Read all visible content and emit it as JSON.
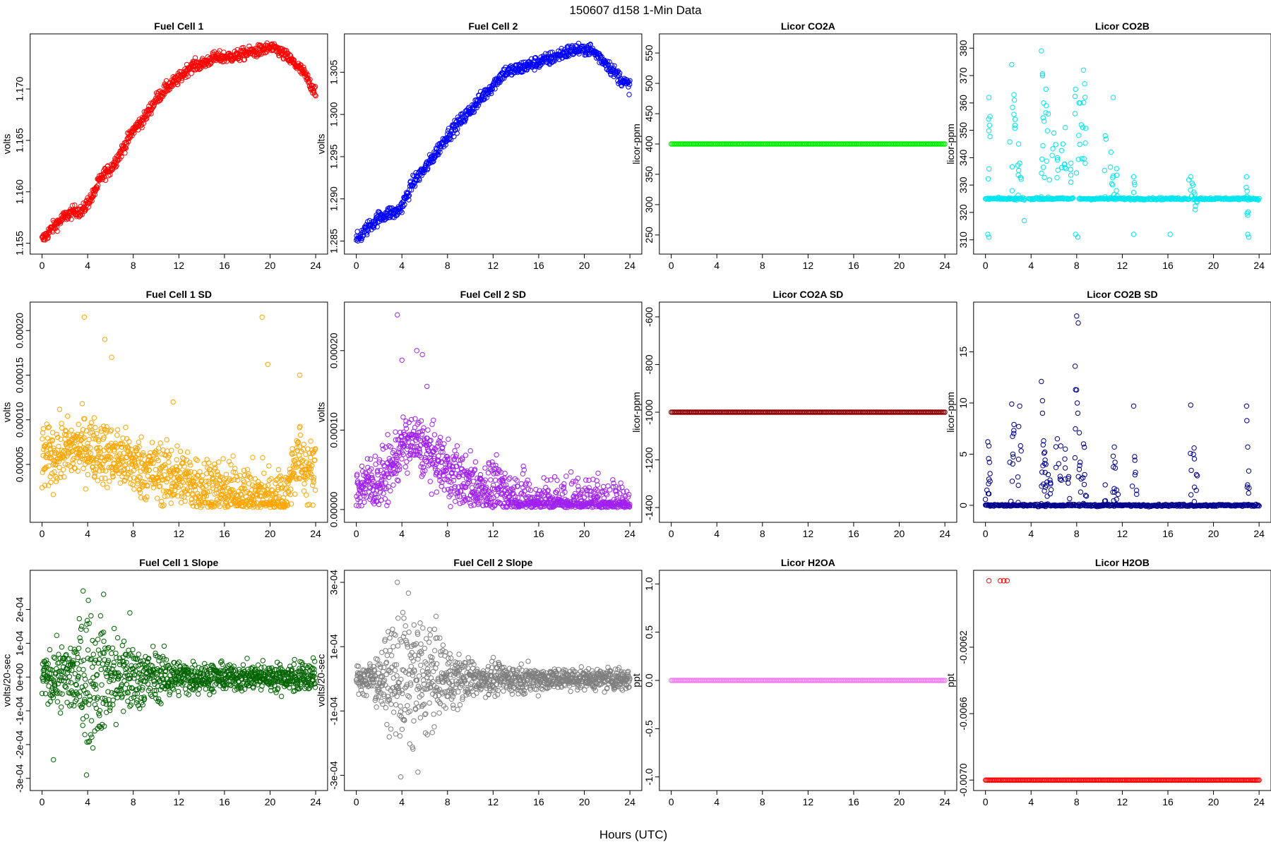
{
  "figure": {
    "title": "150607    d158    1-Min Data",
    "xlabel": "Hours (UTC)"
  },
  "chart_data": [
    {
      "type": "scatter",
      "title": "Fuel Cell 1",
      "ylabel": "volts",
      "color": "#ff0000",
      "xlim": [
        0,
        24
      ],
      "ylim": [
        1.1548,
        1.1745
      ],
      "x_ticks": [
        "0",
        "4",
        "8",
        "12",
        "16",
        "20",
        "24"
      ],
      "y_ticks": [
        "1.155",
        "1.160",
        "1.165",
        "1.170"
      ],
      "pattern": "curve",
      "x": [
        0,
        1,
        2,
        3,
        3.5,
        4,
        4.5,
        5,
        5.5,
        6,
        7,
        8,
        9,
        10,
        11,
        12,
        13,
        14,
        15,
        16,
        17,
        18,
        19,
        20,
        20.5,
        21,
        21.5,
        22,
        22.5,
        23,
        23.5,
        24
      ],
      "y": [
        1.1553,
        1.1566,
        1.1576,
        1.1582,
        1.158,
        1.159,
        1.1597,
        1.161,
        1.1618,
        1.1622,
        1.164,
        1.166,
        1.1672,
        1.169,
        1.1702,
        1.171,
        1.1722,
        1.1724,
        1.173,
        1.1731,
        1.1732,
        1.1735,
        1.1737,
        1.174,
        1.1739,
        1.1735,
        1.1731,
        1.1726,
        1.1721,
        1.1715,
        1.1705,
        1.1698
      ],
      "spread": 0.0003
    },
    {
      "type": "scatter",
      "title": "Fuel Cell 2",
      "ylabel": "volts",
      "color": "#0000ff",
      "xlim": [
        0,
        24
      ],
      "ylim": [
        1.2845,
        1.3085
      ],
      "x_ticks": [
        "0",
        "4",
        "8",
        "12",
        "16",
        "20",
        "24"
      ],
      "y_ticks": [
        "1.285",
        "1.290",
        "1.295",
        "1.300",
        "1.305"
      ],
      "pattern": "curve",
      "x": [
        0,
        1,
        2,
        3,
        3.5,
        4,
        4.5,
        5,
        5.5,
        6,
        7,
        8,
        9,
        10,
        11,
        12,
        13,
        14,
        15,
        16,
        17,
        18,
        19,
        20,
        20.5,
        21,
        21.5,
        22,
        22.5,
        23,
        23.5,
        24
      ],
      "y": [
        1.285,
        1.2866,
        1.2878,
        1.2884,
        1.2883,
        1.2892,
        1.2905,
        1.292,
        1.2928,
        1.2935,
        1.2955,
        1.2975,
        1.299,
        1.3005,
        1.302,
        1.3035,
        1.305,
        1.3053,
        1.3058,
        1.3062,
        1.3066,
        1.3072,
        1.3076,
        1.3078,
        1.3077,
        1.3072,
        1.3066,
        1.306,
        1.3052,
        1.3045,
        1.3038,
        1.3033
      ],
      "spread": 0.0004
    },
    {
      "type": "scatter",
      "title": "Licor CO2A",
      "ylabel": "licor-ppm",
      "color": "#00ee00",
      "xlim": [
        0,
        24
      ],
      "ylim": [
        233,
        567
      ],
      "x_ticks": [
        "0",
        "4",
        "8",
        "12",
        "16",
        "20",
        "24"
      ],
      "y_ticks": [
        "250",
        "300",
        "350",
        "400",
        "450",
        "500",
        "550"
      ],
      "pattern": "constant",
      "value": 400
    },
    {
      "type": "scatter",
      "title": "Licor CO2B",
      "ylabel": "licor-ppm",
      "color": "#00e5ee",
      "xlim": [
        0,
        24
      ],
      "ylim": [
        308,
        382
      ],
      "x_ticks": [
        "0",
        "4",
        "8",
        "12",
        "16",
        "20",
        "24"
      ],
      "y_ticks": [
        "310",
        "320",
        "330",
        "340",
        "350",
        "360",
        "370",
        "380"
      ],
      "pattern": "baseline_spikes",
      "value": 325,
      "spikes_x": [
        0.3,
        0.4,
        2.3,
        2.5,
        2.6,
        2.9,
        3.0,
        4.9,
        5.0,
        5.1,
        5.3,
        5.5,
        6.0,
        6.3,
        6.8,
        7.0,
        7.5,
        7.9,
        8.2,
        8.4,
        8.6,
        8.7,
        10.5,
        11.0,
        11.2,
        11.5,
        13.0,
        18.0,
        18.2,
        18.4,
        22.9,
        23.0
      ],
      "spikes_y": [
        362,
        355,
        374,
        363,
        354,
        345,
        338,
        379,
        370,
        360,
        365,
        356,
        349,
        340,
        345,
        351,
        338,
        365,
        360,
        352,
        372,
        367,
        348,
        342,
        362,
        336,
        333,
        333,
        330,
        321,
        333,
        319
      ],
      "lows_x": [
        0.2,
        0.3,
        3.4,
        7.9,
        8.1,
        13.0,
        16.2,
        23.0,
        23.1
      ],
      "lows_y": [
        312,
        311,
        317,
        312,
        311,
        312,
        312,
        312,
        311
      ],
      "gaps": [
        [
          3.5,
          3.8
        ],
        [
          7.7,
          8.2
        ],
        [
          17.9,
          18.2
        ]
      ]
    },
    {
      "type": "scatter",
      "title": "Fuel Cell 1 SD",
      "ylabel": "volts",
      "color": "#ffa500",
      "xlim": [
        0,
        24
      ],
      "ylim": [
        -5e-06,
        0.000222
      ],
      "x_ticks": [
        "0",
        "4",
        "8",
        "12",
        "16",
        "20",
        "24"
      ],
      "y_ticks": [
        "0.00005",
        "0.00010",
        "0.00015",
        "0.00020"
      ],
      "pattern": "noisy",
      "x": [
        0,
        2,
        4,
        6,
        8,
        10,
        12,
        14,
        16,
        18,
        20,
        21.5,
        22,
        22.5,
        23,
        24
      ],
      "y": [
        5.5e-05,
        6.5e-05,
        7e-05,
        6e-05,
        5e-05,
        4e-05,
        3.5e-05,
        2.5e-05,
        1.8e-05,
        1.5e-05,
        1.3e-05,
        1.2e-05,
        5e-05,
        6e-05,
        4.5e-05,
        4e-05
      ],
      "spread": 1.8e-05,
      "outliers_x": [
        3.7,
        5.5,
        6.1,
        19.3,
        19.8,
        11.5,
        22.6
      ],
      "outliers_y": [
        0.000215,
        0.00019,
        0.00017,
        0.000215,
        0.000162,
        0.00012,
        0.00015
      ]
    },
    {
      "type": "scatter",
      "title": "Fuel Cell 2 SD",
      "ylabel": "volts",
      "color": "#a020f0",
      "xlim": [
        0,
        24
      ],
      "ylim": [
        -5e-06,
        0.00025
      ],
      "x_ticks": [
        "0",
        "4",
        "8",
        "12",
        "16",
        "20",
        "24"
      ],
      "y_ticks": [
        "0.00000",
        "0.00010",
        "0.00020"
      ],
      "pattern": "noisy",
      "x": [
        0,
        2,
        3,
        4,
        5,
        6,
        8,
        10,
        12,
        13,
        14,
        16,
        18,
        20,
        22,
        24
      ],
      "y": [
        3e-05,
        3.5e-05,
        5e-05,
        8e-05,
        8.5e-05,
        7.5e-05,
        5e-05,
        3e-05,
        2.5e-05,
        2.2e-05,
        1.2e-05,
        8e-06,
        6e-06,
        5e-06,
        6e-06,
        8e-06
      ],
      "spread": 1.8e-05,
      "outliers_x": [
        3.6,
        4.0,
        5.3,
        5.8,
        6.2
      ],
      "outliers_y": [
        0.000245,
        0.000188,
        0.0002,
        0.000195,
        0.000155
      ]
    },
    {
      "type": "scatter",
      "title": "Licor CO2A SD",
      "ylabel": "licor-ppm",
      "color": "#8b0000",
      "xlim": [
        0,
        24
      ],
      "ylim": [
        -1425,
        -575
      ],
      "x_ticks": [
        "0",
        "4",
        "8",
        "12",
        "16",
        "20",
        "24"
      ],
      "y_ticks": [
        "-1400",
        "-1200",
        "-1000",
        "-800",
        "-600"
      ],
      "pattern": "constant",
      "value": -1000
    },
    {
      "type": "scatter",
      "title": "Licor CO2B SD",
      "ylabel": "licor-ppm",
      "color": "#00008b",
      "xlim": [
        0,
        24
      ],
      "ylim": [
        -0.8,
        19.0
      ],
      "x_ticks": [
        "0",
        "4",
        "8",
        "12",
        "16",
        "20",
        "24"
      ],
      "y_ticks": [
        "0",
        "5",
        "10",
        "15"
      ],
      "pattern": "baseline_spikes",
      "value": 0,
      "spikes_x": [
        0.2,
        0.3,
        0.4,
        2.3,
        2.4,
        2.5,
        2.9,
        3.0,
        4.9,
        5.0,
        5.1,
        5.2,
        5.3,
        5.5,
        5.7,
        6.3,
        6.6,
        7.0,
        7.3,
        7.9,
        8.0,
        8.1,
        8.3,
        8.6,
        8.7,
        10.5,
        11.2,
        11.3,
        11.5,
        13.0,
        13.1,
        18.0,
        18.3,
        18.5,
        22.9,
        23.0
      ],
      "spikes_y": [
        6.2,
        5.8,
        3.1,
        9.9,
        5.0,
        7.9,
        4.5,
        9.7,
        12.1,
        9.0,
        6.3,
        5.2,
        4.0,
        3.0,
        2.2,
        6.5,
        5.8,
        5.5,
        2.8,
        11.3,
        18.5,
        9.0,
        4.2,
        6.0,
        3.0,
        2.0,
        4.8,
        5.7,
        1.5,
        9.7,
        4.4,
        9.8,
        5.6,
        3.0,
        9.7,
        5.7
      ],
      "gaps": []
    },
    {
      "type": "scatter",
      "title": "Fuel Cell 1 Slope",
      "ylabel": "volts/20-sec",
      "color": "#006400",
      "xlim": [
        0,
        24
      ],
      "ylim": [
        -0.00031,
        0.00029
      ],
      "x_ticks": [
        "0",
        "4",
        "8",
        "12",
        "16",
        "20",
        "24"
      ],
      "y_ticks": [
        "-3e-04",
        "-2e-04",
        "-1e-04",
        "0e+00",
        "1e-04",
        "2e-04"
      ],
      "pattern": "noisy",
      "x": [
        0,
        2,
        4,
        6,
        8,
        10,
        12,
        16,
        20,
        24
      ],
      "y": [
        0,
        0,
        0,
        0,
        0,
        0,
        0,
        0,
        0,
        0
      ],
      "spread_profile": [
        3e-05,
        5e-05,
        0.0001,
        8e-05,
        5e-05,
        4e-05,
        2.5e-05,
        2e-05,
        2e-05,
        2.5e-05
      ],
      "outliers_x": [
        3.6,
        5.4,
        3.9,
        7.7,
        1.0
      ],
      "outliers_y": [
        0.000255,
        0.000245,
        -0.00029,
        0.00019,
        -0.000245
      ]
    },
    {
      "type": "scatter",
      "title": "Fuel Cell 2 Slope",
      "ylabel": "volts/20-sec",
      "color": "#7f7f7f",
      "xlim": [
        0,
        24
      ],
      "ylim": [
        -0.00032,
        0.00031
      ],
      "x_ticks": [
        "0",
        "4",
        "8",
        "12",
        "16",
        "20",
        "24"
      ],
      "y_ticks": [
        "-3e-04",
        "-1e-04",
        "1e-04",
        "3e-04"
      ],
      "pattern": "noisy",
      "x": [
        0,
        2,
        4,
        6,
        8,
        10,
        12,
        16,
        20,
        24
      ],
      "y": [
        0,
        0,
        0,
        0,
        0,
        0,
        0,
        0,
        0,
        0
      ],
      "spread_profile": [
        2e-05,
        4e-05,
        0.00011,
        9e-05,
        5e-05,
        3e-05,
        2.5e-05,
        2e-05,
        1.5e-05,
        2e-05
      ],
      "outliers_x": [
        3.6,
        3.9,
        5.4
      ],
      "outliers_y": [
        0.0003,
        -0.000305,
        -0.00029
      ]
    },
    {
      "type": "scatter",
      "title": "Licor H2OA",
      "ylabel": "ppt",
      "color": "#ee82ee",
      "xlim": [
        0,
        24
      ],
      "ylim": [
        -1.05,
        1.05
      ],
      "x_ticks": [
        "0",
        "4",
        "8",
        "12",
        "16",
        "20",
        "24"
      ],
      "y_ticks": [
        "-1.0",
        "-0.5",
        "0.0",
        "0.5",
        "1.0"
      ],
      "pattern": "constant",
      "value": 0
    },
    {
      "type": "scatter",
      "title": "Licor H2OB",
      "ylabel": "ppt",
      "color": "#ff0000",
      "xlim": [
        0,
        24
      ],
      "ylim": [
        -0.00701,
        -0.00579
      ],
      "x_ticks": [
        "0",
        "4",
        "8",
        "12",
        "16",
        "20",
        "24"
      ],
      "y_ticks": [
        "-0.0070",
        "-0.0066",
        "-0.0062"
      ],
      "pattern": "constant",
      "value": -0.007,
      "extra_x": [
        0.3,
        1.3,
        1.6,
        1.9
      ],
      "extra_y": [
        -0.0058,
        -0.0058,
        -0.0058,
        -0.0058
      ]
    }
  ]
}
